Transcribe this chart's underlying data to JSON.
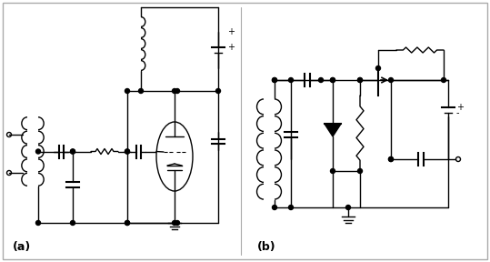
{
  "fig_width": 5.39,
  "fig_height": 2.88,
  "dpi": 100,
  "bg_color": "#ffffff",
  "border_color": "#aaaaaa",
  "line_color": "#000000",
  "label_a": "(a)",
  "label_b": "(b)"
}
